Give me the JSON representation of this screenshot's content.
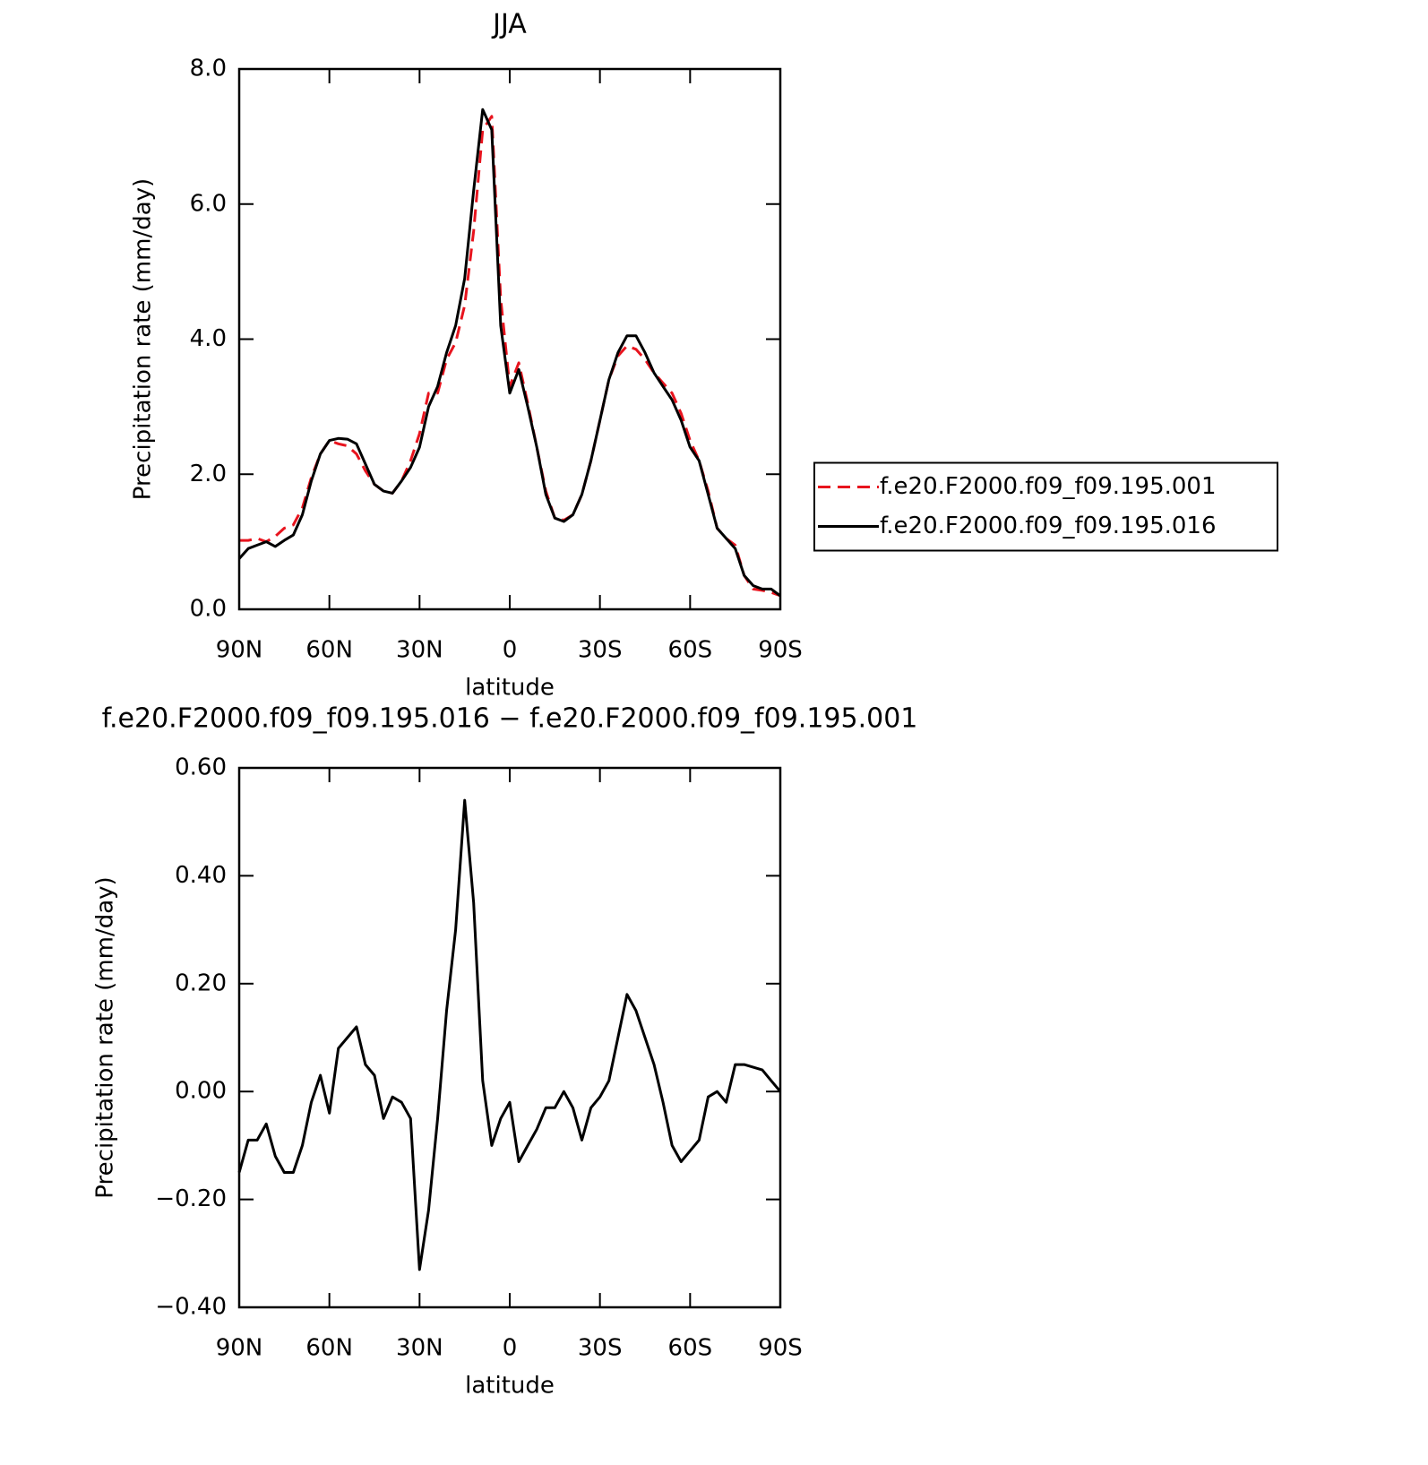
{
  "chart_data": [
    {
      "type": "line",
      "title": "JJA",
      "xlabel": "latitude",
      "ylabel": "Precipitation rate (mm/day)",
      "x": [
        90,
        87,
        84,
        81,
        78,
        75,
        72,
        69,
        66,
        63,
        60,
        57,
        54,
        51,
        48,
        45,
        42,
        39,
        36,
        33,
        30,
        27,
        24,
        21,
        18,
        15,
        12,
        9,
        6,
        3,
        0,
        -3,
        -6,
        -9,
        -12,
        -15,
        -18,
        -21,
        -24,
        -27,
        -30,
        -33,
        -36,
        -39,
        -42,
        -45,
        -48,
        -51,
        -54,
        -57,
        -60,
        -63,
        -66,
        -69,
        -72,
        -75,
        -78,
        -81,
        -84,
        -87,
        -90
      ],
      "xlim": [
        90,
        -90
      ],
      "xticks": [
        {
          "value": 90,
          "label": "90N"
        },
        {
          "value": 60,
          "label": "60N"
        },
        {
          "value": 30,
          "label": "30N"
        },
        0,
        {
          "value": -30,
          "label": "30S"
        },
        {
          "value": -60,
          "label": "60S"
        },
        {
          "value": -90,
          "label": "90S"
        }
      ],
      "ylim": [
        0,
        8
      ],
      "yticks": [
        {
          "value": 0,
          "label": "0.0"
        },
        {
          "value": 2,
          "label": "2.0"
        },
        {
          "value": 4,
          "label": "4.0"
        },
        {
          "value": 6,
          "label": "6.0"
        },
        {
          "value": 8,
          "label": "8.0"
        }
      ],
      "legend": "right",
      "series": [
        {
          "name": "f.e20.F2000.f09_f09.195.001",
          "color": "#e8141e",
          "dashed": true,
          "values": [
            1.02,
            1.02,
            1.05,
            1.0,
            1.08,
            1.2,
            1.25,
            1.5,
            1.95,
            2.3,
            2.5,
            2.45,
            2.42,
            2.3,
            2.05,
            1.85,
            1.75,
            1.72,
            1.9,
            2.2,
            2.6,
            3.2,
            3.2,
            3.7,
            3.95,
            4.5,
            5.6,
            7.1,
            7.3,
            4.6,
            3.3,
            3.65,
            3.05,
            2.4,
            1.75,
            1.35,
            1.32,
            1.4,
            1.7,
            2.2,
            2.8,
            3.4,
            3.75,
            3.9,
            3.85,
            3.7,
            3.5,
            3.35,
            3.2,
            2.9,
            2.5,
            2.2,
            1.75,
            1.2,
            1.05,
            0.95,
            0.5,
            0.3,
            0.28,
            0.25,
            0.2
          ]
        },
        {
          "name": "f.e20.F2000.f09_f09.195.016",
          "color": "#000000",
          "dashed": false,
          "values": [
            0.75,
            0.9,
            0.95,
            1.0,
            0.93,
            1.02,
            1.1,
            1.4,
            1.9,
            2.3,
            2.5,
            2.53,
            2.52,
            2.45,
            2.15,
            1.85,
            1.75,
            1.72,
            1.9,
            2.1,
            2.4,
            3.0,
            3.3,
            3.8,
            4.2,
            4.9,
            6.2,
            7.4,
            7.1,
            4.2,
            3.2,
            3.55,
            3.0,
            2.4,
            1.7,
            1.35,
            1.3,
            1.4,
            1.7,
            2.2,
            2.8,
            3.4,
            3.8,
            4.05,
            4.05,
            3.8,
            3.5,
            3.3,
            3.1,
            2.8,
            2.4,
            2.2,
            1.7,
            1.2,
            1.05,
            0.9,
            0.5,
            0.35,
            0.3,
            0.3,
            0.2
          ]
        }
      ]
    },
    {
      "type": "line",
      "title": "f.e20.F2000.f09_f09.195.016 − f.e20.F2000.f09_f09.195.001",
      "xlabel": "latitude",
      "ylabel": "Precipitation rate (mm/day)",
      "x": [
        90,
        87,
        84,
        81,
        78,
        75,
        72,
        69,
        66,
        63,
        60,
        57,
        54,
        51,
        48,
        45,
        42,
        39,
        36,
        33,
        30,
        27,
        24,
        21,
        18,
        15,
        12,
        9,
        6,
        3,
        0,
        -3,
        -6,
        -9,
        -12,
        -15,
        -18,
        -21,
        -24,
        -27,
        -30,
        -33,
        -36,
        -39,
        -42,
        -45,
        -48,
        -51,
        -54,
        -57,
        -60,
        -63,
        -66,
        -69,
        -72,
        -75,
        -78,
        -81,
        -84,
        -87,
        -90
      ],
      "xlim": [
        90,
        -90
      ],
      "xticks": [
        {
          "value": 90,
          "label": "90N"
        },
        {
          "value": 60,
          "label": "60N"
        },
        {
          "value": 30,
          "label": "30N"
        },
        0,
        {
          "value": -30,
          "label": "30S"
        },
        {
          "value": -60,
          "label": "60S"
        },
        {
          "value": -90,
          "label": "90S"
        }
      ],
      "ylim": [
        -0.4,
        0.6
      ],
      "yticks": [
        {
          "value": -0.4,
          "label": "−0.40"
        },
        {
          "value": -0.2,
          "label": "−0.20"
        },
        {
          "value": 0,
          "label": "0.00"
        },
        {
          "value": 0.2,
          "label": "0.20"
        },
        {
          "value": 0.4,
          "label": "0.40"
        },
        {
          "value": 0.6,
          "label": "0.60"
        }
      ],
      "color": "#000000",
      "values": [
        -0.15,
        -0.09,
        -0.09,
        -0.06,
        -0.12,
        -0.15,
        -0.15,
        -0.1,
        -0.02,
        0.03,
        -0.04,
        0.08,
        0.1,
        0.12,
        0.05,
        0.03,
        -0.05,
        -0.01,
        -0.02,
        -0.05,
        -0.33,
        -0.22,
        -0.05,
        0.15,
        0.3,
        0.54,
        0.35,
        0.02,
        -0.1,
        -0.05,
        -0.02,
        -0.13,
        -0.1,
        -0.07,
        -0.03,
        -0.03,
        0.0,
        -0.03,
        -0.09,
        -0.03,
        -0.01,
        0.02,
        0.1,
        0.18,
        0.15,
        0.1,
        0.05,
        -0.02,
        -0.1,
        -0.13,
        -0.11,
        -0.09,
        -0.01,
        0.0,
        -0.02,
        0.05,
        0.05,
        0.045,
        0.04,
        0.02,
        0.0
      ]
    }
  ]
}
